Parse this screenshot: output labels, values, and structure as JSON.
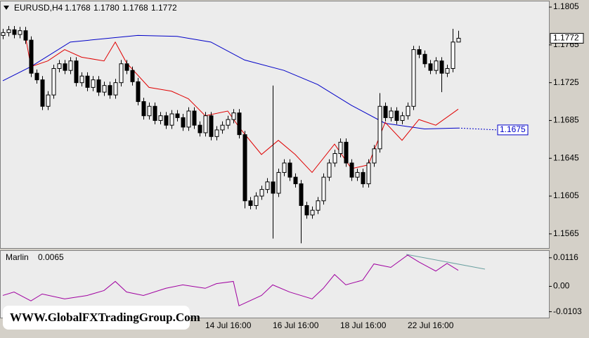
{
  "chart_data": [
    {
      "type": "candlestick",
      "title": "EURUSD,H4",
      "header_values": [
        "1.1768",
        "1.1780",
        "1.1768",
        "1.1772"
      ],
      "categories": [
        null,
        null,
        null,
        null,
        null,
        null,
        null,
        null,
        null,
        null,
        null,
        null,
        null,
        null,
        null,
        null,
        null,
        null,
        null,
        null,
        null,
        null,
        null,
        null,
        null,
        null,
        null,
        null,
        null,
        null,
        null,
        null,
        null,
        null,
        null,
        null,
        "14 Jul 16:00",
        null,
        null,
        null,
        null,
        null,
        null,
        null,
        null,
        null,
        null,
        null,
        "16 Jul 16:00",
        null,
        null,
        null,
        null,
        null,
        null,
        null,
        null,
        null,
        null,
        null,
        "18 Jul 16:00",
        null,
        null,
        null,
        null,
        null,
        null,
        null,
        null,
        null,
        null,
        null,
        "22 Jul 16:00",
        null,
        null,
        null,
        null,
        null,
        null,
        null,
        null,
        null
      ],
      "open": [
        1.1775,
        1.1778,
        1.1781,
        1.1776,
        1.178,
        1.177,
        1.1735,
        1.1728,
        1.17,
        1.1712,
        1.174,
        1.1745,
        1.1738,
        1.1748,
        1.1725,
        1.1732,
        1.172,
        1.1728,
        1.1715,
        1.1722,
        1.1712,
        1.1725,
        1.1745,
        1.1738,
        1.1726,
        1.1705,
        1.169,
        1.17,
        1.1685,
        1.169,
        1.168,
        1.1692,
        1.1688,
        1.1678,
        1.1695,
        1.168,
        1.1672,
        1.169,
        1.1668,
        1.1675,
        1.168,
        1.1686,
        1.1693,
        1.167,
        1.16,
        1.1595,
        1.1605,
        1.1612,
        1.162,
        1.1608,
        1.163,
        1.164,
        1.1625,
        1.1618,
        1.1595,
        1.1585,
        1.159,
        1.16,
        1.1625,
        1.164,
        1.165,
        1.1662,
        1.164,
        1.1625,
        1.163,
        1.1618,
        1.164,
        1.1655,
        1.17,
        1.1688,
        1.1695,
        1.1685,
        1.169,
        1.17,
        1.176,
        1.1755,
        1.1745,
        1.1738,
        1.1748,
        1.1735,
        1.174,
        1.1768
      ],
      "high": [
        1.1782,
        1.1785,
        1.1785,
        1.1784,
        1.1784,
        1.1774,
        1.1739,
        1.1732,
        1.1716,
        1.1744,
        1.1749,
        1.1749,
        1.1752,
        1.1752,
        1.1736,
        1.1736,
        1.1732,
        1.1732,
        1.1726,
        1.1726,
        1.1729,
        1.1749,
        1.1749,
        1.1742,
        1.173,
        1.1709,
        1.1704,
        1.1704,
        1.1694,
        1.1694,
        1.1696,
        1.1696,
        1.1692,
        1.1699,
        1.1699,
        1.1684,
        1.1694,
        1.1694,
        1.1679,
        1.1684,
        1.169,
        1.1697,
        1.1697,
        1.1674,
        1.1604,
        1.1609,
        1.1616,
        1.1624,
        1.1722,
        1.1634,
        1.1644,
        1.1644,
        1.1629,
        1.1622,
        1.1599,
        1.1594,
        1.1604,
        1.1629,
        1.1644,
        1.1654,
        1.1666,
        1.1666,
        1.1644,
        1.1634,
        1.1634,
        1.1644,
        1.1659,
        1.1714,
        1.1704,
        1.1699,
        1.1699,
        1.1694,
        1.1704,
        1.1764,
        1.1764,
        1.1759,
        1.1749,
        1.1752,
        1.1752,
        1.1744,
        1.1782,
        1.178
      ],
      "low": [
        1.1771,
        1.1774,
        1.1772,
        1.1772,
        1.1766,
        1.1731,
        1.1724,
        1.1696,
        1.1696,
        1.1708,
        1.1736,
        1.1734,
        1.1734,
        1.1721,
        1.1721,
        1.1716,
        1.1716,
        1.1711,
        1.1711,
        1.1708,
        1.1708,
        1.1721,
        1.1734,
        1.1722,
        1.1701,
        1.1686,
        1.1686,
        1.1681,
        1.1681,
        1.1676,
        1.1676,
        1.1684,
        1.1674,
        1.1674,
        1.1676,
        1.1668,
        1.1668,
        1.1664,
        1.1664,
        1.1671,
        1.1676,
        1.1682,
        1.1666,
        1.1592,
        1.1591,
        1.1591,
        1.1601,
        1.1608,
        1.156,
        1.1604,
        1.1626,
        1.1621,
        1.1614,
        1.1555,
        1.1581,
        1.1581,
        1.1586,
        1.1596,
        1.1621,
        1.1636,
        1.1646,
        1.1636,
        1.1621,
        1.1621,
        1.1614,
        1.1614,
        1.1636,
        1.1651,
        1.1684,
        1.1684,
        1.1681,
        1.1681,
        1.1686,
        1.1696,
        1.1751,
        1.1741,
        1.1734,
        1.1734,
        1.1715,
        1.1731,
        1.1736,
        1.1768
      ],
      "close": [
        1.1778,
        1.1781,
        1.1776,
        1.178,
        1.177,
        1.1735,
        1.1728,
        1.17,
        1.1712,
        1.174,
        1.1745,
        1.1738,
        1.1748,
        1.1725,
        1.1732,
        1.172,
        1.1728,
        1.1715,
        1.1722,
        1.1712,
        1.1725,
        1.1745,
        1.1738,
        1.1726,
        1.1705,
        1.169,
        1.17,
        1.1685,
        1.169,
        1.168,
        1.1692,
        1.1688,
        1.1678,
        1.1695,
        1.168,
        1.1672,
        1.169,
        1.1668,
        1.1675,
        1.168,
        1.1686,
        1.1693,
        1.167,
        1.16,
        1.1595,
        1.1605,
        1.1612,
        1.162,
        1.1608,
        1.163,
        1.164,
        1.1625,
        1.1618,
        1.1595,
        1.1585,
        1.159,
        1.16,
        1.1625,
        1.164,
        1.165,
        1.1662,
        1.164,
        1.1625,
        1.163,
        1.1618,
        1.164,
        1.1655,
        1.17,
        1.1688,
        1.1695,
        1.1685,
        1.169,
        1.17,
        1.176,
        1.1755,
        1.1745,
        1.1738,
        1.1748,
        1.1735,
        1.174,
        1.1768,
        1.1772
      ],
      "up_color": "#ffffff",
      "down_color": "#000000",
      "series": [
        {
          "color": "#0000c8",
          "x": [
            0,
            5,
            12,
            24,
            31,
            37,
            43,
            50,
            56,
            62,
            68,
            75,
            81
          ],
          "values": [
            1.1727,
            1.1742,
            1.1768,
            1.1775,
            1.1774,
            1.1768,
            1.1749,
            1.1738,
            1.1723,
            1.1701,
            1.1682,
            1.1676,
            1.1677
          ]
        },
        {
          "color": "#e00000",
          "x": [
            4,
            5,
            8,
            11,
            14,
            18,
            20,
            22,
            26,
            30,
            33,
            36,
            40,
            42,
            46,
            49,
            52,
            55,
            59,
            62,
            65,
            68,
            71,
            74,
            77,
            81
          ],
          "values": [
            1.1775,
            1.1742,
            1.1748,
            1.176,
            1.1752,
            1.1748,
            1.1768,
            1.1746,
            1.172,
            1.1716,
            1.1708,
            1.169,
            1.1695,
            1.1678,
            1.1649,
            1.1664,
            1.1649,
            1.163,
            1.166,
            1.1634,
            1.1638,
            1.1683,
            1.1664,
            1.1686,
            1.168,
            1.1697
          ]
        }
      ],
      "last_price_label": 1.1772,
      "ma_price_label": 1.1675,
      "ylim": [
        1.155,
        1.1811
      ],
      "yticks": [
        1.1805,
        1.1765,
        1.1725,
        1.1685,
        1.1645,
        1.1605,
        1.1565
      ],
      "grid": false
    },
    {
      "type": "line",
      "title": "Marlin",
      "indicator_value": 0.0065,
      "series": [
        {
          "color": "#a000a0",
          "x": [
            0,
            2,
            5,
            7,
            11,
            15,
            18,
            20,
            22,
            25,
            29,
            32,
            36,
            38,
            41,
            42,
            46,
            48,
            51,
            53,
            55,
            57,
            59,
            61,
            64,
            66,
            69,
            72,
            74,
            77,
            79,
            81
          ],
          "values": [
            -0.0037,
            -0.0023,
            -0.0059,
            -0.0031,
            -0.0051,
            -0.0037,
            -0.0017,
            0.002,
            -0.0023,
            -0.0037,
            -0.0008,
            0.0006,
            -0.0008,
            0.0011,
            0.002,
            -0.0079,
            -0.0037,
            0.0006,
            -0.0023,
            -0.0037,
            -0.0051,
            -0.0008,
            0.0048,
            0.0006,
            0.0025,
            0.0091,
            0.0077,
            0.0127,
            0.0099,
            0.0062,
            0.0093,
            0.0065
          ]
        }
      ],
      "ylim": [
        -0.0127,
        0.0144
      ],
      "yticks": [
        0.0116,
        {
          "value": 0,
          "label": "0.00"
        },
        -0.0103
      ],
      "grid": false
    }
  ],
  "watermark": "WWW.GlobalFXTradingGroup.Com"
}
